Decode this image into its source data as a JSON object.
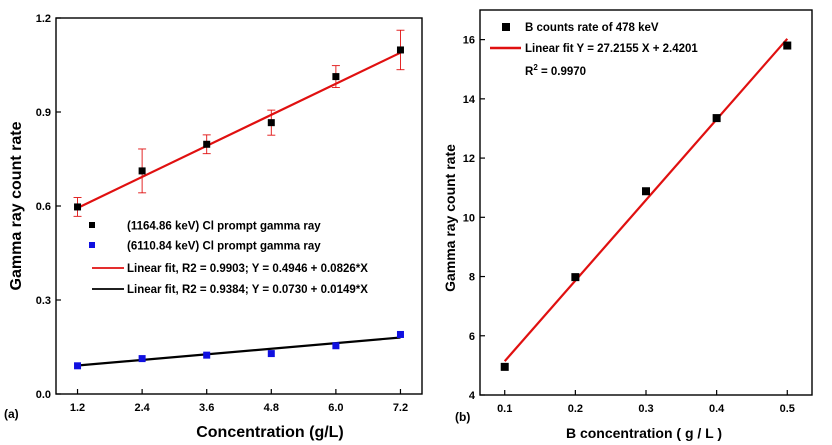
{
  "chart_data": [
    {
      "panel": "(a)",
      "type": "scatter",
      "xlabel": "Concentration (g/L)",
      "ylabel": "Gamma ray count rate",
      "xlim": [
        0.8,
        7.6
      ],
      "ylim": [
        0.0,
        1.2
      ],
      "xticks": [
        "1.2",
        "2.4",
        "3.6",
        "4.8",
        "6.0",
        "7.2"
      ],
      "yticks": [
        "0.0",
        "0.3",
        "0.6",
        "0.9",
        "1.2"
      ],
      "legend_position": "center-left",
      "series": [
        {
          "name": "(1164.86 keV) Cl prompt gamma ray",
          "color": "#000000",
          "marker": "square",
          "x": [
            1.2,
            2.4,
            3.6,
            4.8,
            6.0,
            7.2
          ],
          "y": [
            0.597,
            0.712,
            0.797,
            0.866,
            1.013,
            1.098
          ],
          "err": [
            0.03,
            0.07,
            0.03,
            0.04,
            0.035,
            0.063
          ]
        },
        {
          "name": "(6110.84 keV) Cl prompt gamma ray",
          "color": "#1010e0",
          "marker": "square",
          "x": [
            1.2,
            2.4,
            3.6,
            4.8,
            6.0,
            7.2
          ],
          "y": [
            0.09,
            0.113,
            0.124,
            0.129,
            0.154,
            0.19
          ],
          "err": [
            0,
            0,
            0,
            0,
            0,
            0
          ]
        }
      ],
      "fits": [
        {
          "name": "Linear fit, R2 = 0.9903; Y = 0.4946 + 0.0826*X",
          "color": "#e01010",
          "intercept": 0.4946,
          "slope": 0.0826,
          "x_range": [
            1.2,
            7.2
          ]
        },
        {
          "name": "Linear fit, R2 = 0.9384; Y = 0.0730 + 0.0149*X",
          "color": "#000000",
          "intercept": 0.073,
          "slope": 0.0149,
          "x_range": [
            1.2,
            7.2
          ]
        }
      ]
    },
    {
      "panel": "(b)",
      "type": "scatter",
      "xlabel": "B concentration ( g / L )",
      "ylabel": "Gamma ray count rate",
      "xlim": [
        0.065,
        0.535
      ],
      "ylim": [
        4,
        17
      ],
      "xticks": [
        "0.1",
        "0.2",
        "0.3",
        "0.4",
        "0.5"
      ],
      "yticks": [
        "4",
        "6",
        "8",
        "10",
        "12",
        "14",
        "16"
      ],
      "legend_position": "top-left",
      "series": [
        {
          "name": "B counts rate of 478 keV",
          "color": "#000000",
          "marker": "square",
          "x": [
            0.1,
            0.2,
            0.3,
            0.4,
            0.5
          ],
          "y": [
            4.95,
            7.98,
            10.88,
            13.35,
            15.8
          ]
        }
      ],
      "fits": [
        {
          "name": "Linear fit Y = 27.2155 X + 2.4201",
          "color": "#e01010",
          "intercept": 2.4201,
          "slope": 27.2155,
          "x_range": [
            0.1,
            0.5
          ]
        }
      ],
      "r2_label": "R",
      "r2_sup": "2",
      "r2_value": " = 0.9970"
    }
  ]
}
